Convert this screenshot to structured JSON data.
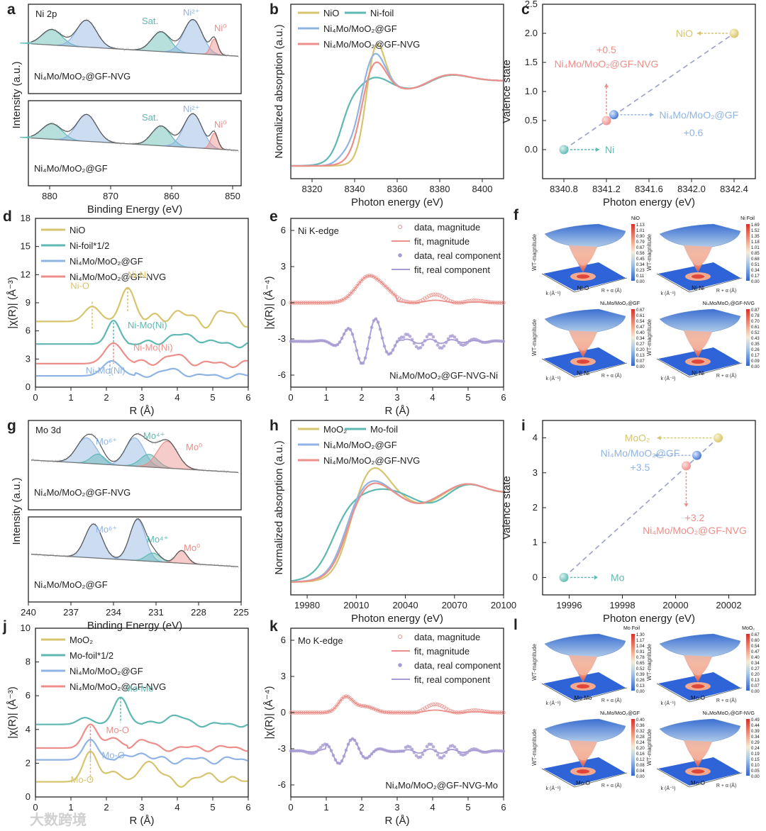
{
  "colors": {
    "yellow": "#d7c46e",
    "teal": "#5fb8b2",
    "blue": "#8fb4e3",
    "red": "#ec8f8a",
    "dash": "#9a9fc8",
    "purple": "#a89ad2",
    "axis": "#222222"
  },
  "chart_data": [
    {
      "id": "a",
      "type": "line",
      "letter": "a",
      "xlabel": "Binding Energy (eV)",
      "ylabel": "Intensity (a.u.)",
      "xticks": [
        "880",
        "870",
        "860",
        "850"
      ],
      "subpanels": [
        {
          "title": "Ni 2p",
          "sample": "Ni₄Mo/MoO₂@GF-NVG",
          "labels": [
            {
              "text": "Sat.",
              "color": "teal"
            },
            {
              "text": "Ni²⁺",
              "color": "blue"
            },
            {
              "text": "Ni⁰",
              "color": "red"
            }
          ]
        },
        {
          "title": "",
          "sample": "Ni₄Mo/MoO₂@GF",
          "labels": [
            {
              "text": "Sat.",
              "color": "teal"
            },
            {
              "text": "Ni²⁺",
              "color": "blue"
            },
            {
              "text": "Ni⁰",
              "color": "red"
            }
          ]
        }
      ]
    },
    {
      "id": "b",
      "type": "line",
      "letter": "b",
      "xlabel": "Photon energy (eV)",
      "ylabel": "Normalized absorption (a.u.)",
      "xticks": [
        "8320",
        "8340",
        "8360",
        "8380",
        "8400"
      ],
      "xlim": [
        8310,
        8410
      ],
      "series": [
        {
          "name": "NiO",
          "color": "yellow"
        },
        {
          "name": "Ni-foil",
          "color": "teal"
        },
        {
          "name": "Ni₄Mo/MoO₂@GF",
          "color": "blue"
        },
        {
          "name": "Ni₄Mo/MoO₂@GF-NVG",
          "color": "red"
        }
      ]
    },
    {
      "id": "c",
      "type": "scatter",
      "letter": "c",
      "xlabel": "Photon energy (eV)",
      "ylabel": "Valence state",
      "xlim": [
        8340.6,
        8342.6
      ],
      "ylim": [
        -0.5,
        2.5
      ],
      "xticks": [
        "8340.8",
        "8341.2",
        "8341.6",
        "8342.0",
        "8342.4"
      ],
      "yticks": [
        "0.0",
        "0.5",
        "1.0",
        "1.5",
        "2.0",
        "2.5"
      ],
      "points": [
        {
          "name": "Ni",
          "x": 8340.8,
          "y": 0.0,
          "color": "teal"
        },
        {
          "name": "Ni₄Mo/MoO₂@GF-NVG",
          "x": 8341.2,
          "y": 0.5,
          "color": "red",
          "value": "+0.5"
        },
        {
          "name": "Ni₄Mo/MoO₂@GF",
          "x": 8341.27,
          "y": 0.6,
          "color": "blue",
          "value": "+0.6"
        },
        {
          "name": "NiO",
          "x": 8342.4,
          "y": 2.0,
          "color": "yellow"
        }
      ]
    },
    {
      "id": "d",
      "type": "line",
      "letter": "d",
      "xlabel": "R (Å)",
      "ylabel": "|χ(R)| (Å⁻³)",
      "xlim": [
        0,
        6
      ],
      "ylim": [
        0,
        18
      ],
      "xticks": [
        "0",
        "1",
        "2",
        "3",
        "4",
        "5",
        "6"
      ],
      "yticks": [
        "0",
        "3",
        "6",
        "9",
        "12",
        "15",
        "18"
      ],
      "series": [
        {
          "name": "NiO",
          "color": "yellow"
        },
        {
          "name": "Ni-foil*1/2",
          "color": "teal"
        },
        {
          "name": "Ni₄Mo/MoO₂@GF",
          "color": "blue"
        },
        {
          "name": "Ni₄Mo/MoO₂@GF-NVG",
          "color": "red"
        }
      ],
      "annotations": [
        "Ni-O",
        "Ni-Ni",
        "Ni-Mo(Ni)",
        "Ni-Mo(Ni)",
        "Ni-Mo(Ni)"
      ]
    },
    {
      "id": "e",
      "type": "line",
      "letter": "e",
      "title": "Ni K-edge",
      "sample": "Ni₄Mo/MoO₂@GF-NVG-Ni",
      "xlabel": "R (Å)",
      "ylabel": "|χ(R)| (Å⁻⁴)",
      "xlim": [
        0,
        6
      ],
      "ylim": [
        -7,
        7
      ],
      "xticks": [
        "0",
        "1",
        "2",
        "3",
        "4",
        "5",
        "6"
      ],
      "yticks": [
        "6",
        "3",
        "0",
        "-3",
        "-6"
      ],
      "series": [
        {
          "name": "data, magnitude",
          "color": "red",
          "style": "open-marker"
        },
        {
          "name": "fit, magnitude",
          "color": "red",
          "style": "line"
        },
        {
          "name": "data, real component",
          "color": "purple",
          "style": "filled-marker"
        },
        {
          "name": "fit, real component",
          "color": "purple",
          "style": "line"
        }
      ]
    },
    {
      "id": "f",
      "type": "heatmap",
      "letter": "f",
      "plots": [
        {
          "name": "NiO",
          "peak": "Ni-O",
          "zlabel": "WT-magnitude",
          "scale": [
            "1.13",
            "1.01",
            "0.90",
            "0.79",
            "0.67",
            "0.56",
            "0.45",
            "0.34",
            "0.23",
            "0.11",
            "0.00"
          ]
        },
        {
          "name": "Ni Foil",
          "peak": "Ni-Ni",
          "zlabel": "WT-magnitude",
          "scale": [
            "1.69",
            "1.52",
            "1.35",
            "1.18",
            "1.01",
            "0.85",
            "0.68",
            "0.51",
            "0.34",
            "0.17",
            "0.00"
          ]
        },
        {
          "name": "Ni₄Mo/MoO₂@GF",
          "peak": "Ni-Ni",
          "zlabel": "WT-magnitude",
          "scale": [
            "0.67",
            "0.61",
            "0.54",
            "0.47",
            "0.40",
            "0.34",
            "0.27",
            "0.20",
            "0.13",
            "0.07",
            "0.00"
          ]
        },
        {
          "name": "Ni₄Mo/MoO₂@GF-NVG",
          "peak": "Ni-Ni",
          "zlabel": "WT-magnitude",
          "scale": [
            "0.87",
            "0.78",
            "0.70",
            "0.61",
            "0.52",
            "0.43",
            "0.35",
            "0.26",
            "0.17",
            "0.09",
            "0.00"
          ]
        }
      ],
      "axis_k": "k (Å⁻¹)",
      "axis_r": "R + α (Å)"
    },
    {
      "id": "g",
      "type": "line",
      "letter": "g",
      "xlabel": "Binding Energy (eV)",
      "ylabel": "Intensity (a.u.)",
      "xticks": [
        "240",
        "237",
        "234",
        "231",
        "228",
        "225"
      ],
      "subpanels": [
        {
          "title": "Mo 3d",
          "sample": "Ni₄Mo/MoO₂@GF-NVG",
          "labels": [
            {
              "text": "Mo⁶⁺",
              "color": "blue"
            },
            {
              "text": "Mo⁴⁺",
              "color": "teal"
            },
            {
              "text": "Mo⁰",
              "color": "red"
            }
          ]
        },
        {
          "title": "",
          "sample": "Ni₄Mo/MoO₂@GF",
          "labels": [
            {
              "text": "Mo⁶⁺",
              "color": "blue"
            },
            {
              "text": "Mo⁴⁺",
              "color": "teal"
            },
            {
              "text": "Mo⁰",
              "color": "red"
            }
          ]
        }
      ]
    },
    {
      "id": "h",
      "type": "line",
      "letter": "h",
      "xlabel": "Photon energy (eV)",
      "ylabel": "Normalized absorption (a.u.)",
      "xticks": [
        "19980",
        "20010",
        "20040",
        "20070",
        "20100"
      ],
      "xlim": [
        19970,
        20100
      ],
      "series": [
        {
          "name": "MoO₂",
          "color": "yellow"
        },
        {
          "name": "Mo-foil",
          "color": "teal"
        },
        {
          "name": "Ni₄Mo/MoO₂@GF",
          "color": "blue"
        },
        {
          "name": "Ni₄Mo/MoO₂@GF-NVG",
          "color": "red"
        }
      ]
    },
    {
      "id": "i",
      "type": "scatter",
      "letter": "i",
      "xlabel": "Photon energy (eV)",
      "ylabel": "Valence state",
      "xlim": [
        19995,
        20003
      ],
      "ylim": [
        -0.5,
        4.5
      ],
      "xticks": [
        "19996",
        "19998",
        "20000",
        "20002"
      ],
      "yticks": [
        "0",
        "1",
        "2",
        "3",
        "4"
      ],
      "points": [
        {
          "name": "Mo",
          "x": 19995.8,
          "y": 0.0,
          "color": "teal"
        },
        {
          "name": "Ni₄Mo/MoO₂@GF-NVG",
          "x": 20000.4,
          "y": 3.2,
          "color": "red",
          "value": "+3.2"
        },
        {
          "name": "Ni₄Mo/MoO₂@GF",
          "x": 20000.8,
          "y": 3.5,
          "color": "blue",
          "value": "+3.5"
        },
        {
          "name": "MoO₂",
          "x": 20001.6,
          "y": 4.0,
          "color": "yellow"
        }
      ]
    },
    {
      "id": "j",
      "type": "line",
      "letter": "j",
      "xlabel": "R (Å)",
      "ylabel": "|χ(R)| (Å⁻³)",
      "xlim": [
        0,
        6
      ],
      "ylim": [
        0,
        10
      ],
      "xticks": [
        "0",
        "1",
        "2",
        "3",
        "4",
        "5",
        "6"
      ],
      "yticks": [
        "0",
        "2",
        "4",
        "6",
        "8",
        "10"
      ],
      "series": [
        {
          "name": "MoO₂",
          "color": "yellow"
        },
        {
          "name": "Mo-foil*1/2",
          "color": "teal"
        },
        {
          "name": "Ni₄Mo/MoO₂@GF",
          "color": "blue"
        },
        {
          "name": "Ni₄Mo/MoO₂@GF-NVG",
          "color": "red"
        }
      ],
      "annotations": [
        "Mo-Mo",
        "Mo-O",
        "Mo-O",
        "Mo-O"
      ]
    },
    {
      "id": "k",
      "type": "line",
      "letter": "k",
      "title": "Mo K-edge",
      "sample": "Ni₄Mo/MoO₂@GF-NVG-Mo",
      "xlabel": "R (Å)",
      "ylabel": "|χ(R)| (Å⁻⁴)",
      "xlim": [
        0,
        6
      ],
      "ylim": [
        -7,
        7
      ],
      "xticks": [
        "0",
        "1",
        "2",
        "3",
        "4",
        "5",
        "6"
      ],
      "yticks": [
        "6",
        "3",
        "0",
        "-3",
        "-6"
      ],
      "series": [
        {
          "name": "data, magnitude",
          "color": "red",
          "style": "open-marker"
        },
        {
          "name": "fit, magnitude",
          "color": "red",
          "style": "line"
        },
        {
          "name": "data, real component",
          "color": "purple",
          "style": "filled-marker"
        },
        {
          "name": "fit, real component",
          "color": "purple",
          "style": "line"
        }
      ]
    },
    {
      "id": "l",
      "type": "heatmap",
      "letter": "l",
      "plots": [
        {
          "name": "Mo Foil",
          "peak": "Mo-Mo",
          "zlabel": "WT-magnitude",
          "scale": [
            "1.30",
            "1.17",
            "1.04",
            "0.91",
            "0.78",
            "0.65",
            "0.52",
            "0.39",
            "0.26",
            "0.13",
            "0.00"
          ]
        },
        {
          "name": "MoO₂",
          "peak": "Mo-O",
          "zlabel": "WT-magnitude",
          "scale": [
            "0.67",
            "0.60",
            "0.54",
            "0.47",
            "0.40",
            "0.34",
            "0.27",
            "0.20",
            "0.13",
            "0.07",
            "0.00"
          ]
        },
        {
          "name": "Ni₄Mo/MoO₂@GF",
          "peak": "Mo-O",
          "zlabel": "WT-magnitude",
          "scale": [
            "0.40",
            "0.36",
            "0.32",
            "0.28",
            "0.24",
            "0.20",
            "0.16",
            "0.12",
            "0.08",
            "0.04",
            "0.00"
          ]
        },
        {
          "name": "Ni₄Mo/MoO₂@GF-NVG",
          "peak": "Mo-O",
          "zlabel": "WT-magnitude",
          "scale": [
            "0.49",
            "0.44",
            "0.39",
            "0.34",
            "0.29",
            "0.24",
            "0.19",
            "0.15",
            "0.10",
            "0.05",
            "0.00"
          ]
        }
      ],
      "axis_k": "k (Å⁻¹)",
      "axis_r": "R + α (Å)"
    }
  ],
  "watermark": "大数跨境"
}
